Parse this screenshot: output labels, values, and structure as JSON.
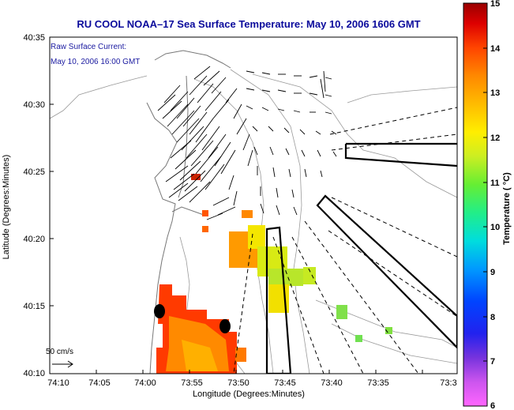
{
  "title": "RU COOL  NOAA–17  Sea Surface Temperature:  May 10, 2006 1606 GMT",
  "annotation": {
    "line1": "Raw Surface Current:",
    "line2": "May 10, 2006 16:00 GMT"
  },
  "scale_label": "50 cm/s",
  "axes": {
    "xlabel": "Longitude (Degrees:Minutes)",
    "ylabel": "Latitude (Degrees:Minutes)",
    "xticks": [
      "74:10",
      "74:05",
      "74:00",
      "73:55",
      "73:50",
      "73:45",
      "73:40",
      "73:35",
      "73:3"
    ],
    "yticks": [
      "40:35",
      "40:30",
      "40:25",
      "40:20",
      "40:15",
      "40:10"
    ]
  },
  "colorbar": {
    "label": "Temperature ( °C)",
    "ticks": [
      "15",
      "14",
      "13",
      "12",
      "11",
      "10",
      "9",
      "8",
      "7",
      "6"
    ],
    "min": 6,
    "max": 15
  },
  "colors": {
    "title": "#0a0a9c",
    "annotation": "#1a1aa0"
  }
}
